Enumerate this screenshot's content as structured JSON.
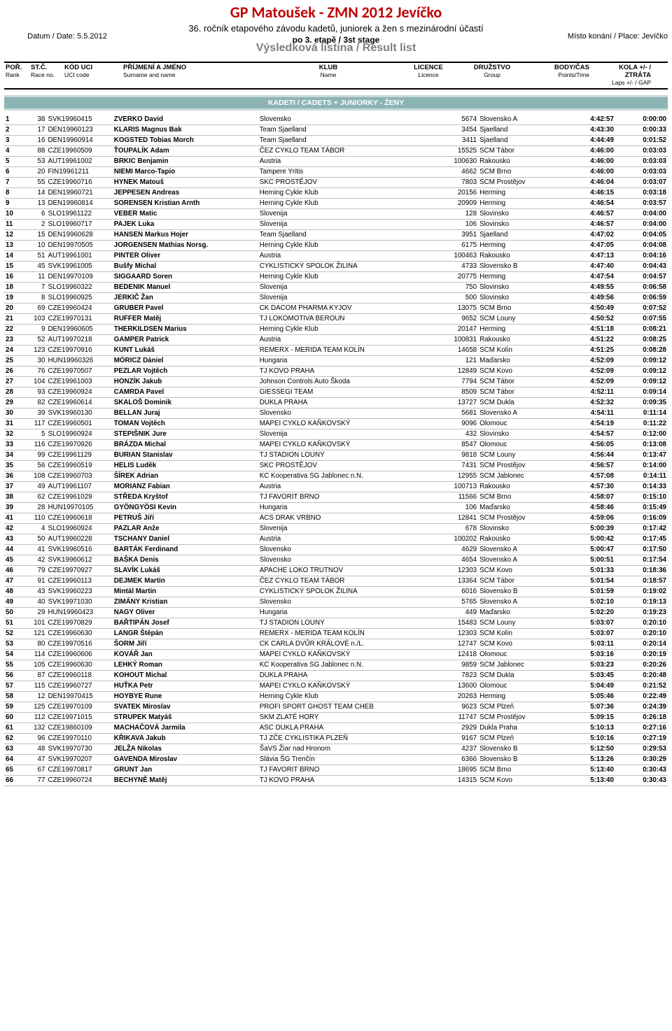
{
  "header": {
    "title": "GP Matoušek - ZMN 2012 Jevíčko",
    "subtitle": "36. ročník etapového závodu kadetů, juniorek a žen s mezinárodní účastí",
    "stage": "po 3. etapě / 3st stage",
    "result_list": "Výsledková listina / Result list",
    "date_label": "Datum / Date: 5.5.2012",
    "place_label": "Místo konání / Place: Jevíčko"
  },
  "columns": [
    {
      "t": "POŘ.",
      "s": "Rank"
    },
    {
      "t": "ST.Č.",
      "s": "Race no."
    },
    {
      "t": "KÓD UCI",
      "s": "UCI code"
    },
    {
      "t": "PŘÍJMENÍ A JMÉNO",
      "s": "Surname and name"
    },
    {
      "t": "KLUB",
      "s": "Name"
    },
    {
      "t": "LICENCE",
      "s": "Licence"
    },
    {
      "t": "DRUŽSTVO",
      "s": "Group"
    },
    {
      "t": "BODY/ČAS",
      "s": "Points/Time"
    },
    {
      "t": "KOLA +/- / ZTRÁTA",
      "s": "Laps +/- / GAP"
    }
  ],
  "section_label": "KADETI  / CADETS + JUNIORKY - ŽENY",
  "rows": [
    {
      "rank": "1",
      "race": "38",
      "uci": "SVK19960415",
      "name": "ZVERKO David",
      "klub": "Slovensko",
      "lic": "5674",
      "grp": "Slovensko A",
      "time": "4:42:57",
      "gap": "0:00:00"
    },
    {
      "rank": "2",
      "race": "17",
      "uci": "DEN19960123",
      "name": "KLARIS Magnus Bak",
      "klub": "Team Sjaelland",
      "lic": "3454",
      "grp": "Sjaelland",
      "time": "4:43:30",
      "gap": "0:00:33"
    },
    {
      "rank": "3",
      "race": "16",
      "uci": "DEN19960914",
      "name": "KOGSTED Tobias Morch",
      "klub": "Team Sjaelland",
      "lic": "3411",
      "grp": "Sjaelland",
      "time": "4:44:49",
      "gap": "0:01:52"
    },
    {
      "rank": "4",
      "race": "88",
      "uci": "CZE19960509",
      "name": "ŤOUPALÍK Adam",
      "klub": "ČEZ CYKLO TEAM TÁBOR",
      "lic": "15525",
      "grp": "SCM Tábor",
      "time": "4:46:00",
      "gap": "0:03:03"
    },
    {
      "rank": "5",
      "race": "53",
      "uci": "AUT19961002",
      "name": "BRKIC Benjamin",
      "klub": "Austria",
      "lic": "100630",
      "grp": "Rakousko",
      "time": "4:46:00",
      "gap": "0:03:03"
    },
    {
      "rank": "6",
      "race": "20",
      "uci": "FIN19961211",
      "name": "NIEMI Marco-Tapio",
      "klub": "Tampere Yritis",
      "lic": "4662",
      "grp": "SCM Brno",
      "time": "4:46:00",
      "gap": "0:03:03"
    },
    {
      "rank": "7",
      "race": "55",
      "uci": "CZE19960716",
      "name": "HYNEK Matouš",
      "klub": "SKC PROSTĚJOV",
      "lic": "7803",
      "grp": "SCM Prostějov",
      "time": "4:46:04",
      "gap": "0:03:07"
    },
    {
      "rank": "8",
      "race": "14",
      "uci": "DEN19960721",
      "name": "JEPPESEN Andreas",
      "klub": "Herning Cykle Klub",
      "lic": "20156",
      "grp": "Herming",
      "time": "4:46:15",
      "gap": "0:03:18"
    },
    {
      "rank": "9",
      "race": "13",
      "uci": "DEN19960814",
      "name": "SORENSEN Kristian Arnth",
      "klub": "Herning Cykle Klub",
      "lic": "20909",
      "grp": "Herming",
      "time": "4:46:54",
      "gap": "0:03:57"
    },
    {
      "rank": "10",
      "race": "6",
      "uci": "SLO19961122",
      "name": "VEBER Matic",
      "klub": "Slovenija",
      "lic": "128",
      "grp": "Slovinsko",
      "time": "4:46:57",
      "gap": "0:04:00"
    },
    {
      "rank": "11",
      "race": "2",
      "uci": "SLO19960717",
      "name": "PAJEK Luka",
      "klub": "Slovenija",
      "lic": "106",
      "grp": "Slovinsko",
      "time": "4:46:57",
      "gap": "0:04:00"
    },
    {
      "rank": "12",
      "race": "15",
      "uci": "DEN19960628",
      "name": "HANSEN Markus Hojer",
      "klub": "Team Sjaelland",
      "lic": "3951",
      "grp": "Sjaelland",
      "time": "4:47:02",
      "gap": "0:04:05"
    },
    {
      "rank": "13",
      "race": "10",
      "uci": "DEN19970505",
      "name": "JORGENSEN Mathias Norsg.",
      "klub": "Herning Cykle Klub",
      "lic": "6175",
      "grp": "Herming",
      "time": "4:47:05",
      "gap": "0:04:08"
    },
    {
      "rank": "14",
      "race": "51",
      "uci": "AUT19961001",
      "name": "PINTER Oliver",
      "klub": "Austria",
      "lic": "100463",
      "grp": "Rakousko",
      "time": "4:47:13",
      "gap": "0:04:16"
    },
    {
      "rank": "15",
      "race": "45",
      "uci": "SVK19961005",
      "name": "Bušfy Michal",
      "klub": "CYKLISTICKÝ SPOLOK ŽILINA",
      "lic": "4733",
      "grp": "Slovensko B",
      "time": "4:47:40",
      "gap": "0:04:43"
    },
    {
      "rank": "16",
      "race": "11",
      "uci": "DEN19970109",
      "name": "SIGGAARD Soren",
      "klub": "Herning Cykle Klub",
      "lic": "20775",
      "grp": "Herming",
      "time": "4:47:54",
      "gap": "0:04:57"
    },
    {
      "rank": "18",
      "race": "7",
      "uci": "SLO19960322",
      "name": "BEDENIK Manuel",
      "klub": "Slovenija",
      "lic": "750",
      "grp": "Slovinsko",
      "time": "4:49:55",
      "gap": "0:06:58"
    },
    {
      "rank": "19",
      "race": "8",
      "uci": "SLO19960925",
      "name": "JERKIČ Žan",
      "klub": "Slovenija",
      "lic": "500",
      "grp": "Slovinsko",
      "time": "4:49:56",
      "gap": "0:06:59"
    },
    {
      "rank": "20",
      "race": "69",
      "uci": "CZE19960424",
      "name": "GRUBER Pavel",
      "klub": "CK DACOM PHARMA KYJOV",
      "lic": "13075",
      "grp": "SCM Brno",
      "time": "4:50:49",
      "gap": "0:07:52"
    },
    {
      "rank": "21",
      "race": "103",
      "uci": "CZE19970131",
      "name": "RUFFER Matěj",
      "klub": "TJ LOKOMOTIVA BEROUN",
      "lic": "9652",
      "grp": "SCM Louny",
      "time": "4:50:52",
      "gap": "0:07:55"
    },
    {
      "rank": "22",
      "race": "9",
      "uci": "DEN19960605",
      "name": "THERKILDSEN Marius",
      "klub": "Herning Cykle Klub",
      "lic": "20147",
      "grp": "Herming",
      "time": "4:51:18",
      "gap": "0:08:21"
    },
    {
      "rank": "23",
      "race": "52",
      "uci": "AUT19970218",
      "name": "GAMPER Patrick",
      "klub": "Austria",
      "lic": "100831",
      "grp": "Rakousko",
      "time": "4:51:22",
      "gap": "0:08:25"
    },
    {
      "rank": "24",
      "race": "123",
      "uci": "CZE19970916",
      "name": "KUNT Lukáš",
      "klub": "REMERX - MERIDA TEAM  KOLÍN",
      "lic": "14658",
      "grp": "SCM Kolín",
      "time": "4:51:25",
      "gap": "0:08:28"
    },
    {
      "rank": "25",
      "race": "30",
      "uci": "HUN19960326",
      "name": "MÓRICZ Dániel",
      "klub": "Hungaria",
      "lic": "121",
      "grp": "Maďarsko",
      "time": "4:52:09",
      "gap": "0:09:12"
    },
    {
      "rank": "26",
      "race": "76",
      "uci": "CZE19970507",
      "name": "PEZLAR Vojtěch",
      "klub": "TJ KOVO PRAHA",
      "lic": "12849",
      "grp": "SCM Kovo",
      "time": "4:52:09",
      "gap": "0:09:12"
    },
    {
      "rank": "27",
      "race": "104",
      "uci": "CZE19961003",
      "name": "HONZÍK Jakub",
      "klub": "Johnson Controls Auto Škoda",
      "lic": "7794",
      "grp": "SCM Tábor",
      "time": "4:52:09",
      "gap": "0:09:12"
    },
    {
      "rank": "28",
      "race": "93",
      "uci": "CZE19960924",
      "name": "CAMRDA Pavel",
      "klub": "GIESSEGI TEAM",
      "lic": "8509",
      "grp": "SCM Tábor",
      "time": "4:52:11",
      "gap": "0:09:14"
    },
    {
      "rank": "29",
      "race": "82",
      "uci": "CZE19960614",
      "name": "SKALOŠ Dominik",
      "klub": "DUKLA  PRAHA",
      "lic": "13727",
      "grp": "SCM Dukla",
      "time": "4:52:32",
      "gap": "0:09:35"
    },
    {
      "rank": "30",
      "race": "39",
      "uci": "SVK19960130",
      "name": "BELLAN Juraj",
      "klub": "Slovensko",
      "lic": "5681",
      "grp": "Slovensko A",
      "time": "4:54:11",
      "gap": "0:11:14"
    },
    {
      "rank": "31",
      "race": "117",
      "uci": "CZE19960501",
      "name": "TOMAN Vojtěch",
      "klub": "MAPEI CYKLO KAŇKOVSKÝ",
      "lic": "9096",
      "grp": "Olomouc",
      "time": "4:54:19",
      "gap": "0:11:22"
    },
    {
      "rank": "32",
      "race": "5",
      "uci": "SLO19960924",
      "name": "STEPIŠNIK Jure",
      "klub": "Slovenija",
      "lic": "432",
      "grp": "Slovinsko",
      "time": "4:54:57",
      "gap": "0:12:00"
    },
    {
      "rank": "33",
      "race": "116",
      "uci": "CZE19970926",
      "name": "BRÁZDA Michal",
      "klub": "MAPEI CYKLO KAŇKOVSKÝ",
      "lic": "8547",
      "grp": "Olomouc",
      "time": "4:56:05",
      "gap": "0:13:08"
    },
    {
      "rank": "34",
      "race": "99",
      "uci": "CZE19961129",
      "name": "BURIAN Stanislav",
      "klub": "TJ STADION LOUNY",
      "lic": "9818",
      "grp": "SCM Louny",
      "time": "4:56:44",
      "gap": "0:13:47"
    },
    {
      "rank": "35",
      "race": "56",
      "uci": "CZE19960519",
      "name": "HELIS Luděk",
      "klub": "SKC PROSTĚJOV",
      "lic": "7431",
      "grp": "SCM Prostějov",
      "time": "4:56:57",
      "gap": "0:14:00"
    },
    {
      "rank": "36",
      "race": "108",
      "uci": "CZE19960703",
      "name": "ŠÍREK Adrian",
      "klub": "KC Kooperativa SG Jablonec n.N.",
      "lic": "12955",
      "grp": "SCM Jablonec",
      "time": "4:57:08",
      "gap": "0:14:11"
    },
    {
      "rank": "37",
      "race": "49",
      "uci": "AUT19961107",
      "name": "MORIANZ Fabian",
      "klub": "Austria",
      "lic": "100713",
      "grp": "Rakousko",
      "time": "4:57:30",
      "gap": "0:14:33"
    },
    {
      "rank": "38",
      "race": "62",
      "uci": "CZE19961029",
      "name": "STŘEDA Kryštof",
      "klub": "TJ FAVORIT BRNO",
      "lic": "11566",
      "grp": "SCM Brno",
      "time": "4:58:07",
      "gap": "0:15:10"
    },
    {
      "rank": "39",
      "race": "28",
      "uci": "HUN19970105",
      "name": "GYÖNGYÖSI Kevin",
      "klub": "Hungaria",
      "lic": "106",
      "grp": "Maďarsko",
      "time": "4:58:46",
      "gap": "0:15:49"
    },
    {
      "rank": "41",
      "race": "110",
      "uci": "CZE19960618",
      "name": "PETRUŠ Jiří",
      "klub": "ACS DRAK VRBNO",
      "lic": "12841",
      "grp": "SCM Prostějov",
      "time": "4:59:06",
      "gap": "0:16:09"
    },
    {
      "rank": "42",
      "race": "4",
      "uci": "SLO19960924",
      "name": "PAZLAR Anže",
      "klub": "Slovenija",
      "lic": "678",
      "grp": "Slovinsko",
      "time": "5:00:39",
      "gap": "0:17:42"
    },
    {
      "rank": "43",
      "race": "50",
      "uci": "AUT19960228",
      "name": "TSCHANY Daniel",
      "klub": "Austria",
      "lic": "100202",
      "grp": "Rakousko",
      "time": "5:00:42",
      "gap": "0:17:45"
    },
    {
      "rank": "44",
      "race": "41",
      "uci": "SVK19960516",
      "name": "BARTÁK Ferdinand",
      "klub": "Slovensko",
      "lic": "4629",
      "grp": "Slovensko A",
      "time": "5:00:47",
      "gap": "0:17:50"
    },
    {
      "rank": "45",
      "race": "42",
      "uci": "SVK19960612",
      "name": "BAŠKA Denis",
      "klub": "Slovensko",
      "lic": "4654",
      "grp": "Slovensko A",
      "time": "5:00:51",
      "gap": "0:17:54"
    },
    {
      "rank": "46",
      "race": "79",
      "uci": "CZE19970927",
      "name": "SLAVÍK Lukáš",
      "klub": "APACHE LOKO TRUTNOV",
      "lic": "12303",
      "grp": "SCM Kovo",
      "time": "5:01:33",
      "gap": "0:18:36"
    },
    {
      "rank": "47",
      "race": "91",
      "uci": "CZE19960113",
      "name": "DEJMEK Martin",
      "klub": "ČEZ CYKLO TEAM TÁBOR",
      "lic": "13364",
      "grp": "SCM Tábor",
      "time": "5:01:54",
      "gap": "0:18:57"
    },
    {
      "rank": "48",
      "race": "43",
      "uci": "SVK19960223",
      "name": "Mintál Martin",
      "klub": "CYKLISTICKÝ SPOLOK ŽILINA",
      "lic": "6016",
      "grp": "Slovensko B",
      "time": "5:01:59",
      "gap": "0:19:02"
    },
    {
      "rank": "49",
      "race": "40",
      "uci": "SVK19971030",
      "name": "ZIMÁNY Kristian",
      "klub": "Slovensko",
      "lic": "5765",
      "grp": "Slovensko A",
      "time": "5:02:10",
      "gap": "0:19:13"
    },
    {
      "rank": "50",
      "race": "29",
      "uci": "HUN19960423",
      "name": "NAGY Oliver",
      "klub": "Hungaria",
      "lic": "449",
      "grp": "Maďarsko",
      "time": "5:02:20",
      "gap": "0:19:23"
    },
    {
      "rank": "51",
      "race": "101",
      "uci": "CZE19970829",
      "name": "BAŘTIPÁN Josef",
      "klub": "TJ STADION LOUNY",
      "lic": "15483",
      "grp": "SCM Louny",
      "time": "5:03:07",
      "gap": "0:20:10"
    },
    {
      "rank": "52",
      "race": "121",
      "uci": "CZE19960630",
      "name": "LANGR Štěpán",
      "klub": "REMERX - MERIDA TEAM  KOLÍN",
      "lic": "12303",
      "grp": "SCM Kolín",
      "time": "5:03:07",
      "gap": "0:20:10"
    },
    {
      "rank": "53",
      "race": "80",
      "uci": "CZE19970516",
      "name": "ŠORM Jiří",
      "klub": "CK CARLA DVŮR KRÁLOVÉ n./L.",
      "lic": "12747",
      "grp": "SCM Kovo",
      "time": "5:03:11",
      "gap": "0:20:14"
    },
    {
      "rank": "54",
      "race": "114",
      "uci": "CZE19960606",
      "name": "KOVÁŘ Jan",
      "klub": "MAPEI CYKLO KAŇKOVSKÝ",
      "lic": "12418",
      "grp": "Olomouc",
      "time": "5:03:16",
      "gap": "0:20:19"
    },
    {
      "rank": "55",
      "race": "105",
      "uci": "CZE19960630",
      "name": "LEHKÝ Roman",
      "klub": "KC Kooperativa SG Jablonec n.N.",
      "lic": "9859",
      "grp": "SCM Jablonec",
      "time": "5:03:23",
      "gap": "0:20:26"
    },
    {
      "rank": "56",
      "race": "87",
      "uci": "CZE19960118",
      "name": "KOHOUT Michal",
      "klub": "DUKLA  PRAHA",
      "lic": "7823",
      "grp": "SCM Dukla",
      "time": "5:03:45",
      "gap": "0:20:48"
    },
    {
      "rank": "57",
      "race": "115",
      "uci": "CZE19960727",
      "name": "HUŤKA Petr",
      "klub": "MAPEI CYKLO KAŇKOVSKÝ",
      "lic": "13600",
      "grp": "Olomouc",
      "time": "5:04:49",
      "gap": "0:21:52"
    },
    {
      "rank": "58",
      "race": "12",
      "uci": "DEN19970415",
      "name": "HOYBYE Rune",
      "klub": "Herning Cykle Klub",
      "lic": "20263",
      "grp": "Herming",
      "time": "5:05:46",
      "gap": "0:22:49"
    },
    {
      "rank": "59",
      "race": "125",
      "uci": "CZE19970109",
      "name": "SVATEK Miroslav",
      "klub": "PROFI SPORT GHOST TEAM CHEB",
      "lic": "9623",
      "grp": "SCM Plzeň",
      "time": "5:07:36",
      "gap": "0:24:39"
    },
    {
      "rank": "60",
      "race": "112",
      "uci": "CZE19971015",
      "name": "STRUPEK Matyáš",
      "klub": "SKM ZLATÉ HORY",
      "lic": "11747",
      "grp": "SCM Prostějov",
      "time": "5:09:15",
      "gap": "0:26:18"
    },
    {
      "rank": "61",
      "race": "132",
      "uci": "CZE19860109",
      "name": "MACHAČOVÁ Jarmila",
      "klub": "ASC DUKLA  PRAHA",
      "lic": "2929",
      "grp": "Dukla Praha",
      "time": "5:10:13",
      "gap": "0:27:16"
    },
    {
      "rank": "62",
      "race": "96",
      "uci": "CZE19970110",
      "name": "KŘIKAVA Jakub",
      "klub": "TJ ZČE CYKLISTIKA PLZEŇ",
      "lic": "9167",
      "grp": "SCM Plzeň",
      "time": "5:10:16",
      "gap": "0:27:19"
    },
    {
      "rank": "63",
      "race": "48",
      "uci": "SVK19970730",
      "name": "JELŽA Nikolas",
      "klub": "ŠaVS Žiar nad Hronom",
      "lic": "4237",
      "grp": "Slovensko B",
      "time": "5:12:50",
      "gap": "0:29:53"
    },
    {
      "rank": "64",
      "race": "47",
      "uci": "SVK19970207",
      "name": "GAVENDA Miroslav",
      "klub": "Slávia ŠG Trenčín",
      "lic": "6366",
      "grp": "Slovensko B",
      "time": "5:13:26",
      "gap": "0:30:29"
    },
    {
      "rank": "65",
      "race": "67",
      "uci": "CZE19970817",
      "name": "GRUNT Jan",
      "klub": "TJ FAVORIT BRNO",
      "lic": "18695",
      "grp": "SCM Brno",
      "time": "5:13:40",
      "gap": "0:30:43"
    },
    {
      "rank": "66",
      "race": "77",
      "uci": "CZE19960724",
      "name": "BECHYNĚ Matěj",
      "klub": "TJ KOVO PRAHA",
      "lic": "14315",
      "grp": "SCM Kovo",
      "time": "5:13:40",
      "gap": "0:30:43"
    }
  ]
}
